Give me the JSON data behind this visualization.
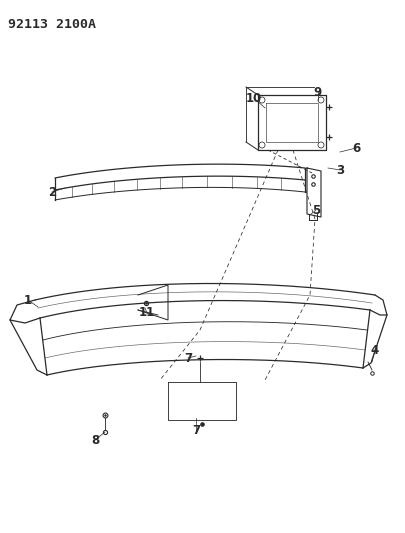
{
  "title_code": "92113 2100A",
  "bg_color": "#ffffff",
  "line_color": "#2a2a2a",
  "title_fontsize": 9.5,
  "label_fontsize": 8.5,
  "fig_width": 4.06,
  "fig_height": 5.33,
  "dpi": 100
}
